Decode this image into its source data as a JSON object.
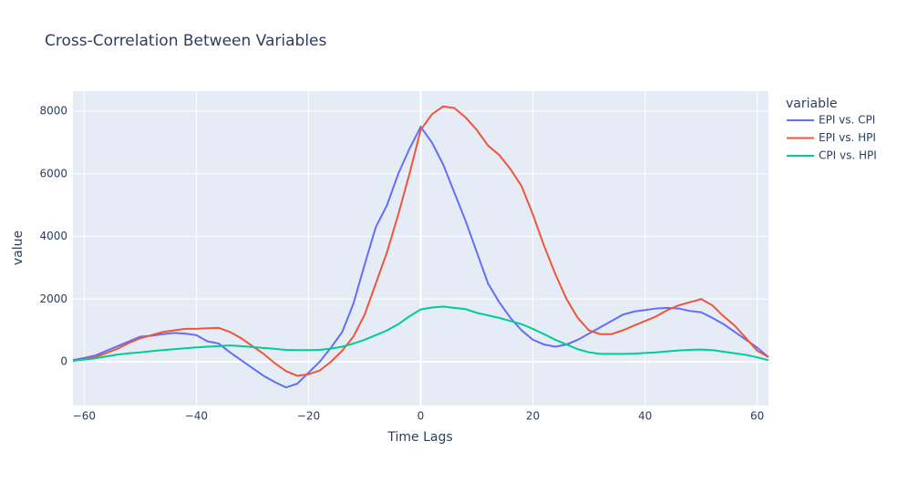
{
  "chart_data": {
    "type": "line",
    "title": "Cross-Correlation Between Variables",
    "x_label": "Time Lags",
    "y_label": "value",
    "legend_title": "variable",
    "legend_position": "right",
    "grid": true,
    "x": [
      -62,
      -60,
      -58,
      -56,
      -54,
      -52,
      -50,
      -48,
      -46,
      -44,
      -42,
      -40,
      -38,
      -36,
      -34,
      -32,
      -30,
      -28,
      -26,
      -24,
      -22,
      -20,
      -18,
      -16,
      -14,
      -12,
      -10,
      -8,
      -6,
      -4,
      -2,
      0,
      2,
      4,
      6,
      8,
      10,
      12,
      14,
      16,
      18,
      20,
      22,
      24,
      26,
      28,
      30,
      32,
      34,
      36,
      38,
      40,
      42,
      44,
      46,
      48,
      50,
      52,
      54,
      56,
      58,
      60,
      62
    ],
    "series": [
      {
        "name": "EPI vs. CPI",
        "color": "#636efa",
        "values": [
          50,
          120,
          200,
          350,
          500,
          650,
          800,
          830,
          880,
          920,
          900,
          850,
          650,
          580,
          300,
          50,
          -200,
          -450,
          -650,
          -820,
          -700,
          -350,
          0,
          450,
          950,
          1850,
          3100,
          4300,
          5000,
          6000,
          6800,
          7500,
          7000,
          6300,
          5400,
          4500,
          3500,
          2500,
          1900,
          1400,
          1000,
          700,
          550,
          480,
          550,
          700,
          900,
          1100,
          1300,
          1500,
          1600,
          1650,
          1700,
          1720,
          1700,
          1620,
          1580,
          1400,
          1200,
          950,
          700,
          450,
          150
        ]
      },
      {
        "name": "EPI vs. HPI",
        "color": "#ef553b",
        "values": [
          30,
          80,
          150,
          280,
          420,
          600,
          750,
          850,
          950,
          1000,
          1050,
          1050,
          1070,
          1080,
          950,
          750,
          500,
          250,
          -50,
          -300,
          -450,
          -400,
          -280,
          0,
          350,
          800,
          1500,
          2500,
          3500,
          4700,
          6000,
          7400,
          7900,
          8150,
          8100,
          7800,
          7400,
          6900,
          6600,
          6150,
          5600,
          4700,
          3700,
          2800,
          2000,
          1400,
          1000,
          880,
          880,
          1000,
          1150,
          1300,
          1450,
          1650,
          1800,
          1900,
          2000,
          1800,
          1450,
          1150,
          750,
          350,
          150
        ]
      },
      {
        "name": "CPI vs. HPI",
        "color": "#00cc96",
        "values": [
          30,
          70,
          110,
          170,
          230,
          270,
          300,
          340,
          370,
          400,
          430,
          460,
          480,
          500,
          520,
          500,
          470,
          440,
          410,
          380,
          370,
          370,
          380,
          420,
          480,
          580,
          700,
          850,
          1000,
          1200,
          1450,
          1670,
          1730,
          1760,
          1720,
          1680,
          1560,
          1480,
          1400,
          1300,
          1200,
          1050,
          880,
          700,
          550,
          400,
          300,
          250,
          250,
          250,
          260,
          280,
          300,
          330,
          360,
          380,
          390,
          370,
          320,
          270,
          220,
          140,
          50
        ]
      }
    ],
    "xlim": [
      -62,
      62
    ],
    "ylim": [
      -1396,
      8640
    ],
    "xticks": [
      {
        "value": -60,
        "label": "−60"
      },
      {
        "value": -40,
        "label": "−40"
      },
      {
        "value": -20,
        "label": "−20"
      },
      0,
      20,
      40,
      60
    ],
    "yticks": [
      0,
      2000,
      4000,
      6000,
      8000
    ]
  }
}
